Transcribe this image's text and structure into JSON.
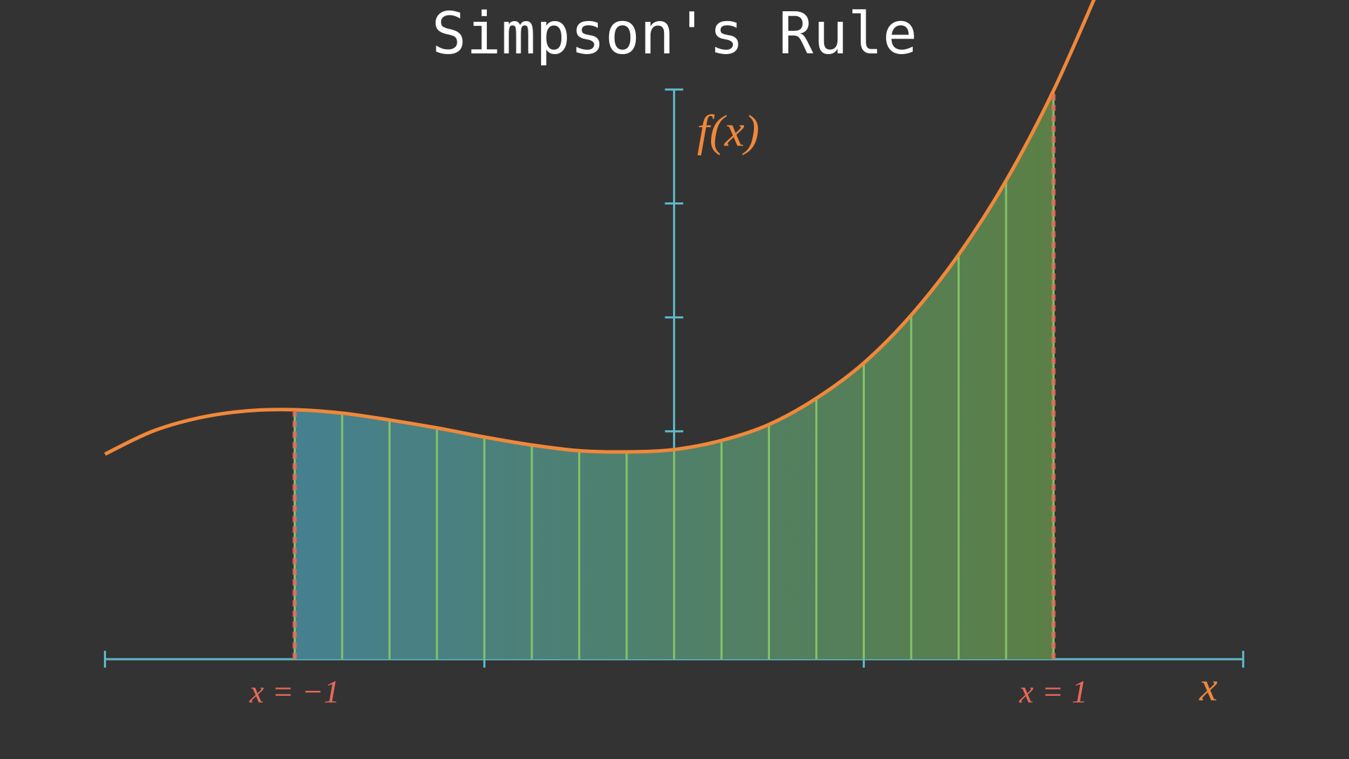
{
  "chart_data": {
    "type": "simpson",
    "title": "Simpson's Rule",
    "x_label": "x",
    "y_label": "f(x)",
    "x": [
      -1.5,
      -1.375,
      -1.25,
      -1.125,
      -1.0,
      -0.875,
      -0.75,
      -0.625,
      -0.5,
      -0.375,
      -0.25,
      -0.125,
      0,
      0.125,
      0.25,
      0.375,
      0.5,
      0.625,
      0.75,
      0.875,
      1.0,
      1.125
    ],
    "values": [
      1.8,
      2.0,
      2.12,
      2.18,
      2.19,
      2.16,
      2.1,
      2.03,
      1.95,
      1.88,
      1.83,
      1.82,
      1.84,
      1.92,
      2.06,
      2.29,
      2.6,
      3.02,
      3.55,
      4.2,
      4.99,
      5.93
    ],
    "bounds": [
      {
        "value": -1,
        "label": "x = −1"
      },
      {
        "value": 1,
        "label": "x = 1"
      }
    ],
    "xlim": [
      -1.5,
      1.5
    ],
    "xticks": [
      -1.5,
      -0.5,
      0.5,
      1.5
    ],
    "ylim": [
      0,
      5
    ],
    "yticks": [
      1,
      2,
      3,
      4,
      5
    ],
    "color": "#f0883a",
    "axis_color": "#5fb8c8",
    "bound_color": "#e8695a",
    "strip_color": "#83c167",
    "fill_colors": [
      "#45808f",
      "#5b7f45"
    ]
  }
}
